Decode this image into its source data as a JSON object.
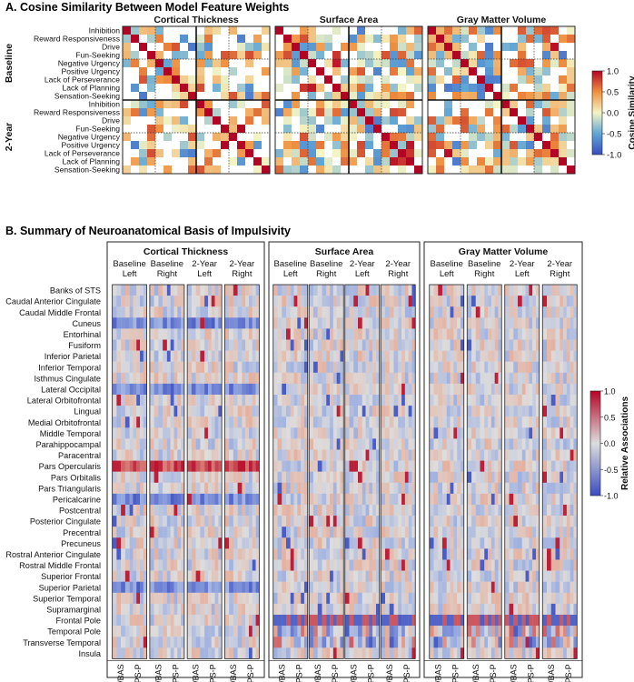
{
  "chart_data": [
    {
      "type": "heatmap",
      "panel": "A",
      "title": "A. Cosine Similarity Between Model Feature Weights",
      "column_groups": [
        "Cortical Thickness",
        "Surface Area",
        "Gray Matter Volume"
      ],
      "row_groups": [
        "Baseline",
        "2-Year"
      ],
      "row_labels": [
        "Inhibition",
        "Reward Responsiveness",
        "Drive",
        "Fun-Seeking",
        "Negative Urgency",
        "Positive Urgency",
        "Lack of Perseverance",
        "Lack of Planning",
        "Sensation-Seeking"
      ],
      "colorbar": {
        "label": "Cosine Similarity",
        "ticks": [
          "1.0",
          "0.5",
          "0.0",
          "-0.5",
          "-1.0"
        ],
        "range": [
          -1,
          1
        ]
      },
      "note": "Cell values estimated from color; symmetric 18x18 blocks per modality."
    },
    {
      "type": "heatmap",
      "panel": "B",
      "title": "B. Summary of Neuroanatomical Basis of Impulsivity",
      "column_groups": [
        {
          "name": "Cortical Thickness",
          "subgroups": [
            "Baseline\nLeft",
            "Baseline\nRight",
            "2-Year\nLeft",
            "2-Year\nRight"
          ]
        },
        {
          "name": "Surface Area",
          "subgroups": [
            "Baseline\nLeft",
            "Baseline\nRight",
            "2-Year\nLeft",
            "2-Year\nRight"
          ]
        },
        {
          "name": "Gray Matter Volume",
          "subgroups": [
            "Baseline\nLeft",
            "Baseline\nRight",
            "2-Year\nLeft",
            "2-Year\nRight"
          ]
        }
      ],
      "column_labels": [
        "BIS/BAS",
        "UPPS-P"
      ],
      "row_labels": [
        "Banks of STS",
        "Caudal Anterior Cingulate",
        "Caudal Middle Frontal",
        "Cuneus",
        "Entorhinal",
        "Fusiform",
        "Inferior Parietal",
        "Inferior Temporal",
        "Isthmus Cingulate",
        "Lateral Occipital",
        "Lateral Orbitofrontal",
        "Lingual",
        "Medial Orbitofrontal",
        "Middle Temporal",
        "Parahippocampal",
        "Paracentral",
        "Pars Opercularis",
        "Pars Orbitalis",
        "Pars Triangularis",
        "Pericalcarine",
        "Postcentral",
        "Posterior Cingulate",
        "Precentral",
        "Precuneus",
        "Rostral Anterior Cingulate",
        "Rostral Middle Frontal",
        "Superior Frontal",
        "Superior Parietal",
        "Superior Temporal",
        "Supramarginal",
        "Frontal Pole",
        "Temporal Pole",
        "Transverse Temporal",
        "Insula"
      ],
      "colorbar": {
        "label": "Relative Associations",
        "ticks": [
          "1.0",
          "0.5",
          "0.0",
          "-0.5",
          "-1.0"
        ],
        "range": [
          -1,
          1
        ]
      },
      "note": "Cell values estimated from color."
    }
  ]
}
